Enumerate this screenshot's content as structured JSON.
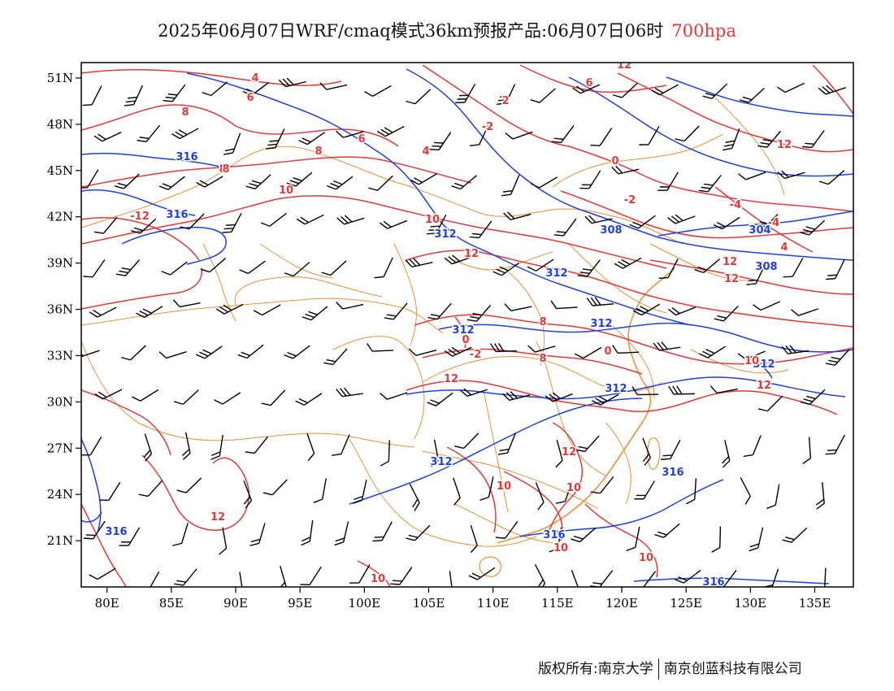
{
  "title": {
    "main": "2025年06月07日WRF/cmaq模式36km预报产品:06月07日06时",
    "level": "700hpa",
    "level_color": "#e23a3a"
  },
  "footer": {
    "left": "版权所有:南京大学",
    "right": "南京创蓝科技有限公司"
  },
  "colors": {
    "height_contour": "#2040e0",
    "temperature_contour": "#e23a3a",
    "boundary": "#e8923a",
    "wind_barb": "#000000",
    "frame": "#000000"
  },
  "axes": {
    "lon_range": [
      78,
      138
    ],
    "lat_range": [
      18,
      52
    ],
    "x_ticks": [
      "80E",
      "85E",
      "90E",
      "95E",
      "100E",
      "105E",
      "110E",
      "115E",
      "120E",
      "125E",
      "130E",
      "135E"
    ],
    "y_ticks": [
      "51N",
      "48N",
      "45N",
      "42N",
      "39N",
      "36N",
      "33N",
      "30N",
      "27N",
      "24N",
      "21N"
    ]
  },
  "contour_labels": {
    "height": [
      "316",
      "316",
      "312",
      "312",
      "312",
      "312",
      "312",
      "308",
      "308",
      "304",
      "316",
      "316",
      "316",
      "312",
      "312",
      "316"
    ],
    "temperature": [
      "8",
      "6",
      "4",
      "8",
      "8",
      "6",
      "4",
      "10",
      "10",
      "12",
      "-12",
      "12",
      "12",
      "10",
      "10",
      "10",
      "8",
      "8",
      "0",
      "-2",
      "0",
      "2",
      "-2",
      "0",
      "-2",
      "-4",
      "-4",
      "4",
      "6",
      "12",
      "12",
      "12",
      "12",
      "12",
      "10",
      "10",
      "12",
      "10",
      "8"
    ]
  }
}
